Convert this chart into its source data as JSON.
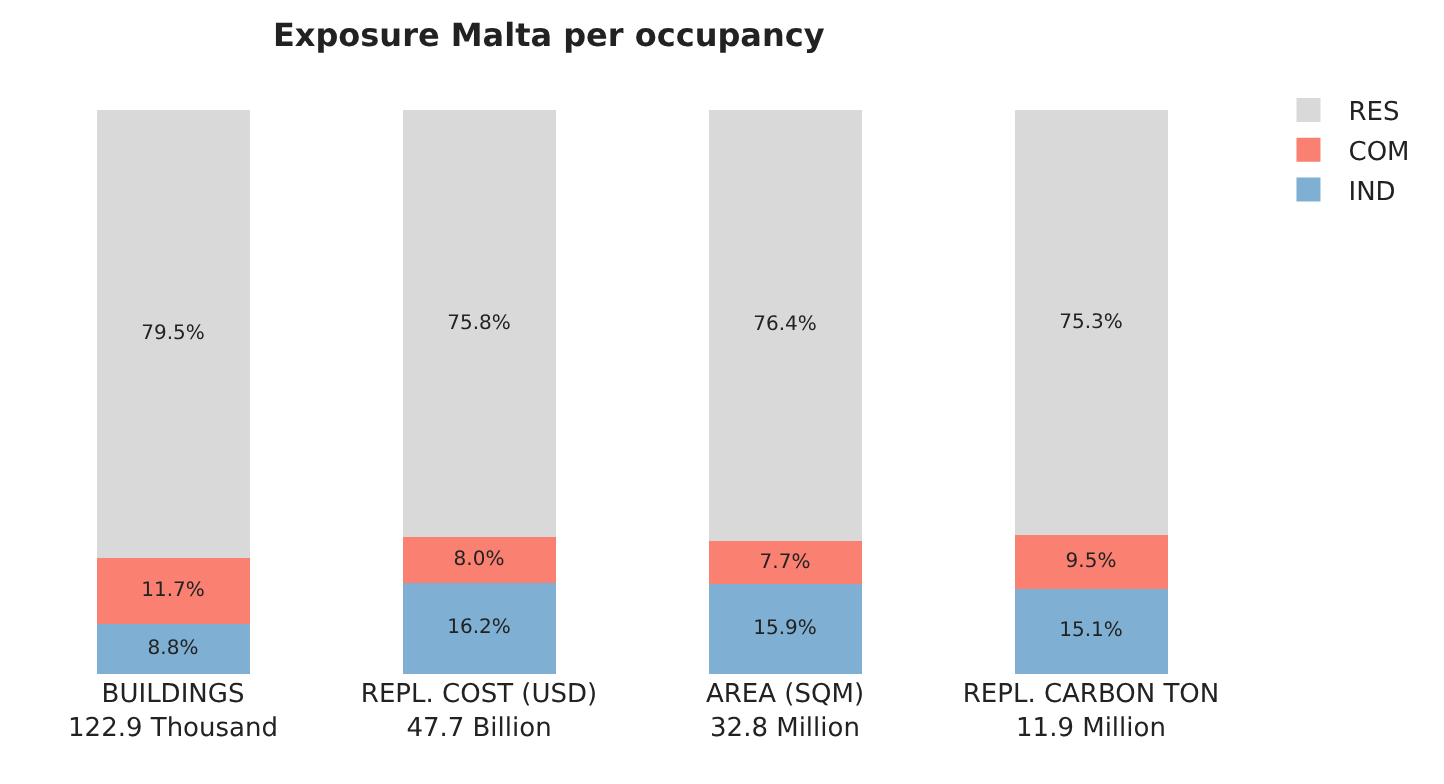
{
  "chart_data": {
    "type": "bar",
    "title": "Exposure Malta per occupancy",
    "stacked": true,
    "legend": "top right",
    "categories": [
      "BUILDINGS\n122.9 Thousand",
      "REPL. COST (USD)\n47.7 Billion",
      "AREA (SQM)\n32.8 Million",
      "REPL. CARBON TON\n11.9 Million"
    ],
    "series": [
      {
        "name": "IND",
        "color": "#7fafd3",
        "values": [
          8.8,
          16.2,
          15.9,
          15.1
        ],
        "value_labels": [
          "8.8%",
          "16.2%",
          "15.9%",
          "15.1%"
        ]
      },
      {
        "name": "COM",
        "color": "#fa8072",
        "values": [
          11.7,
          8.0,
          7.7,
          9.5
        ],
        "value_labels": [
          "11.7%",
          "8.0%",
          "7.7%",
          "9.5%"
        ]
      },
      {
        "name": "RES",
        "color": "#d9d9d9",
        "values": [
          79.5,
          75.8,
          76.4,
          75.3
        ],
        "value_labels": [
          "79.5%",
          "75.8%",
          "76.4%",
          "75.3%"
        ]
      }
    ]
  }
}
